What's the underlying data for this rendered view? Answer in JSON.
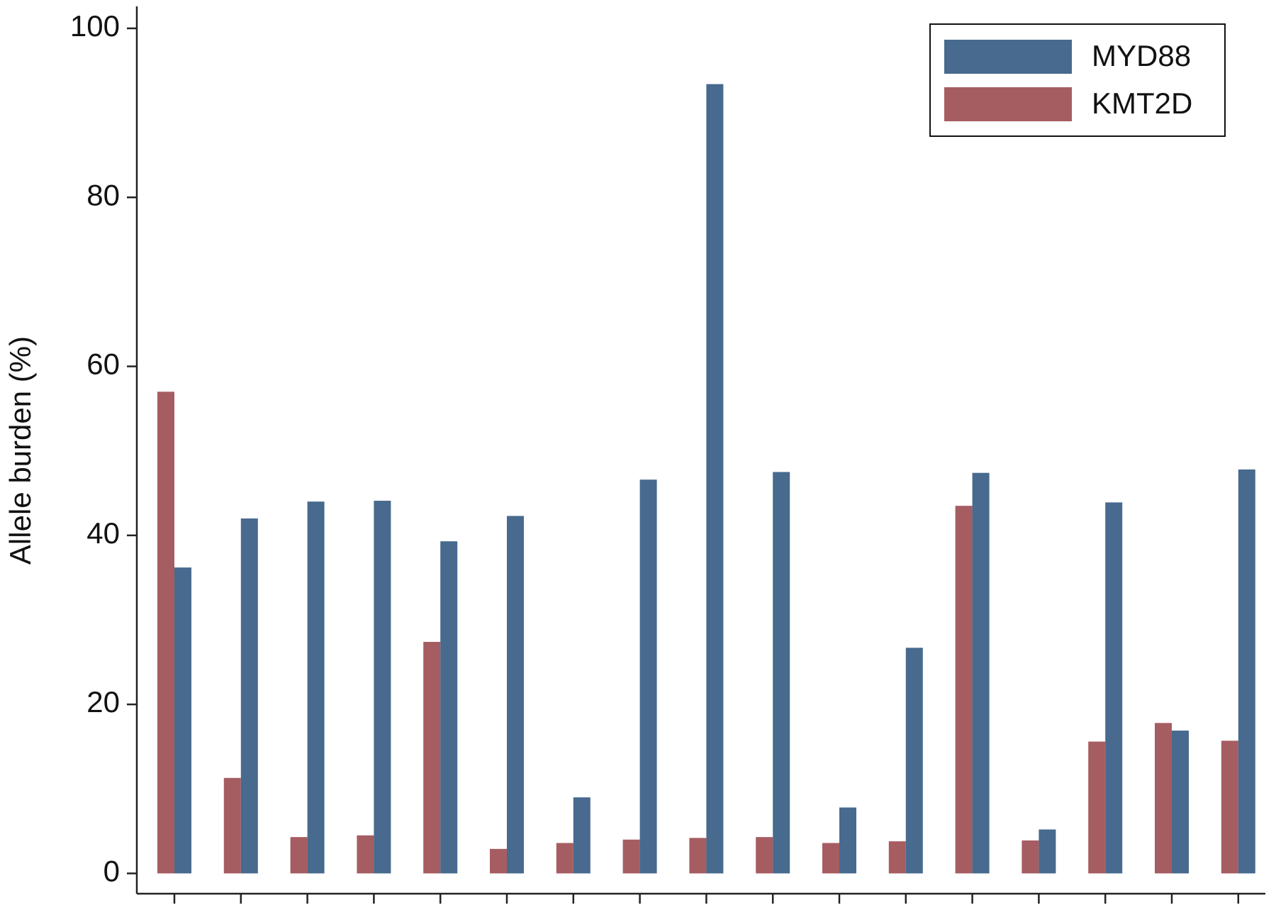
{
  "chart_data": {
    "type": "bar",
    "y_label": "Allele burden (%)",
    "categories": [
      null,
      null,
      null,
      null,
      null,
      null,
      null,
      null,
      null,
      null,
      null,
      null,
      null,
      null,
      null,
      null,
      null
    ],
    "series": [
      {
        "name": "MYD88",
        "color": "#476a8e",
        "values": [
          36.2,
          42,
          44,
          44.1,
          39.3,
          42.3,
          9,
          46.6,
          93.4,
          47.5,
          7.8,
          26.7,
          47.4,
          5.2,
          43.9,
          16.9,
          47.8
        ]
      },
      {
        "name": "KMT2D",
        "color": "#a65d61",
        "values": [
          57,
          11.3,
          4.3,
          4.5,
          27.4,
          2.9,
          3.6,
          4,
          4.2,
          4.3,
          3.6,
          3.8,
          43.5,
          3.9,
          15.6,
          17.8,
          15.7
        ]
      }
    ],
    "ylim": [
      -2.4,
      102.6
    ],
    "yticks": [
      0,
      20,
      40,
      60,
      80,
      100
    ],
    "grid": false,
    "legend": "top-right"
  }
}
